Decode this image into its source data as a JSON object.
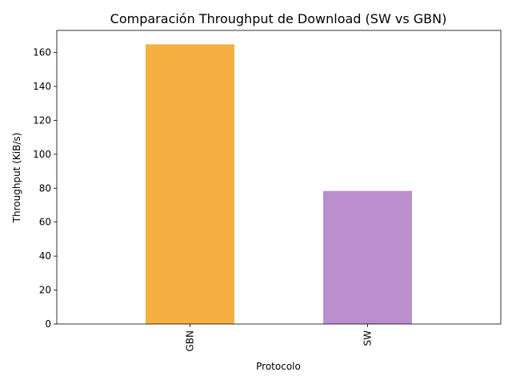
{
  "chart_data": {
    "type": "bar",
    "title": "Comparación Throughput de Download (SW vs GBN)",
    "xlabel": "Protocolo",
    "ylabel": "Throughput (KiB/s)",
    "categories": [
      "GBN",
      "SW"
    ],
    "values": [
      164.8,
      78.4
    ],
    "colors": [
      "#F5B041",
      "#BB8FCE"
    ],
    "ylim": [
      0,
      173
    ],
    "yticks": [
      0,
      20,
      40,
      60,
      80,
      100,
      120,
      140,
      160
    ],
    "grid": false,
    "legend": "none",
    "xtick_rotation": "vertical"
  }
}
